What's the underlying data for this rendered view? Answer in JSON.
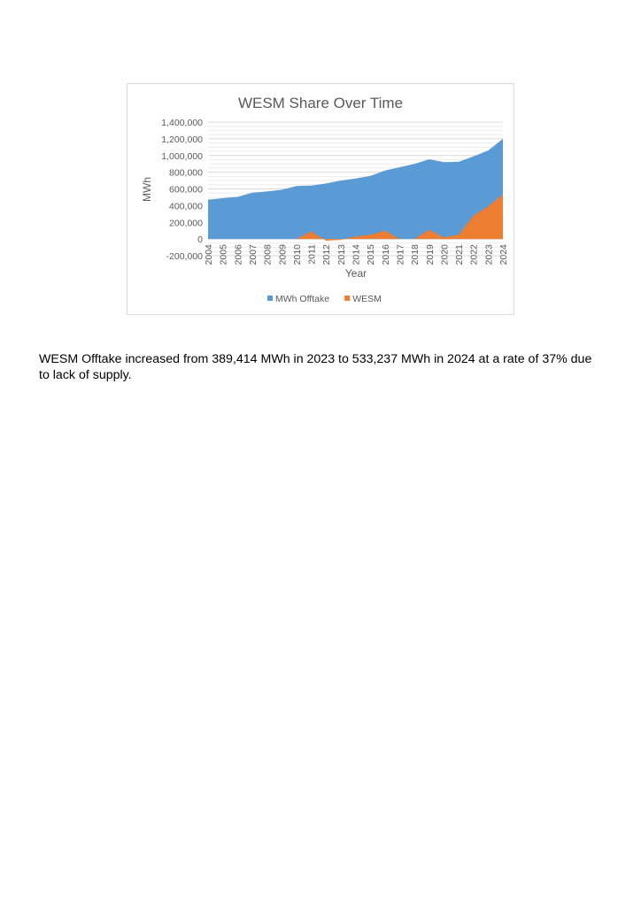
{
  "chart_data": {
    "type": "area",
    "title": "WESM Share Over Time",
    "xlabel": "Year",
    "ylabel": "MWh",
    "ylim": [
      -200000,
      1400000
    ],
    "ytick_step": 200000,
    "ytick_labels": [
      "-200,000",
      "0",
      "200,000",
      "400,000",
      "600,000",
      "800,000",
      "1,000,000",
      "1,200,000",
      "1,400,000"
    ],
    "grid": true,
    "legend": "bottom",
    "stacked": false,
    "categories": [
      "2004",
      "2005",
      "2006",
      "2007",
      "2008",
      "2009",
      "2010",
      "2011",
      "2012",
      "2013",
      "2014",
      "2015",
      "2016",
      "2017",
      "2018",
      "2019",
      "2020",
      "2021",
      "2022",
      "2023",
      "2024"
    ],
    "series": [
      {
        "name": "MWh Offtake",
        "color": "#5b9bd5",
        "values": [
          470000,
          490000,
          505000,
          555000,
          570000,
          590000,
          635000,
          640000,
          665000,
          700000,
          725000,
          755000,
          820000,
          860000,
          900000,
          955000,
          920000,
          925000,
          990000,
          1060000,
          1200000
        ]
      },
      {
        "name": "WESM",
        "color": "#ed7d31",
        "values": [
          0,
          0,
          0,
          0,
          0,
          0,
          0,
          90000,
          -20000,
          -10000,
          30000,
          50000,
          100000,
          0,
          0,
          110000,
          20000,
          50000,
          280000,
          389414,
          533237
        ]
      }
    ]
  },
  "caption": "WESM Offtake increased from 389,414 MWh in 2023 to 533,237 MWh in 2024 at a rate of 37% due to lack of supply."
}
